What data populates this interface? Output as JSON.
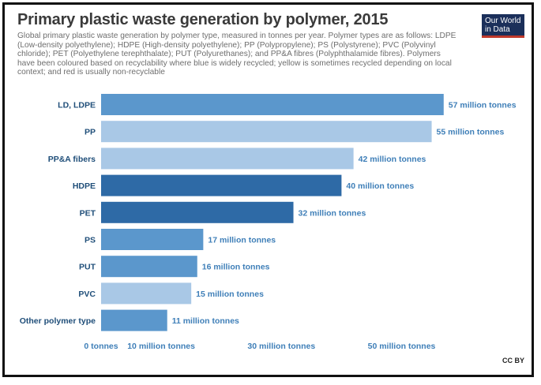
{
  "header": {
    "title": "Primary plastic waste generation by polymer, 2015",
    "subtitle": "Global primary plastic waste generation by polymer type, measured in tonnes per year. Polymer types are as follows: LDPE (Low-density polyethylene); HDPE (High-density polyethylene); PP (Polypropylene); PS (Polystyrene); PVC (Polyvinyl chloride); PET (Polyethylene terephthalate); PUT (Polyurethanes); and PP&A fibres (Polyphthalamide fibres). Polymers have been coloured based on recyclability where blue is widely recycled; yellow is sometimes recycled depending on local context; and red is usually non-recyclable",
    "logo_line1": "Our World",
    "logo_line2": "in Data"
  },
  "footer": {
    "license": "CC BY"
  },
  "colors": {
    "dark": "#2e6aa6",
    "mid": "#5b97cc",
    "light": "#a9c8e6",
    "label": "#1f4e79",
    "value_text": "#3f7fb8"
  },
  "chart_data": {
    "type": "bar",
    "orientation": "horizontal",
    "categories": [
      "LD, LDPE",
      "PP",
      "PP&A fibers",
      "HDPE",
      "PET",
      "PS",
      "PUT",
      "PVC",
      "Other polymer type"
    ],
    "values": [
      57,
      55,
      42,
      40,
      32,
      17,
      16,
      15,
      11
    ],
    "value_labels": [
      "57 million tonnes",
      "55 million tonnes",
      "42 million tonnes",
      "40 million tonnes",
      "32 million tonnes",
      "17 million tonnes",
      "16 million tonnes",
      "15 million tonnes",
      "11 million tonnes"
    ],
    "bar_shades": [
      "mid",
      "light",
      "light",
      "dark",
      "dark",
      "mid",
      "mid",
      "light",
      "mid"
    ],
    "x_ticks": [
      0,
      10,
      30,
      50
    ],
    "x_tick_labels": [
      "0 tonnes",
      "10 million tonnes",
      "30 million tonnes",
      "50 million tonnes"
    ],
    "unit": "million tonnes",
    "xlim": [
      0,
      59
    ],
    "grid": false,
    "legend": "none"
  }
}
